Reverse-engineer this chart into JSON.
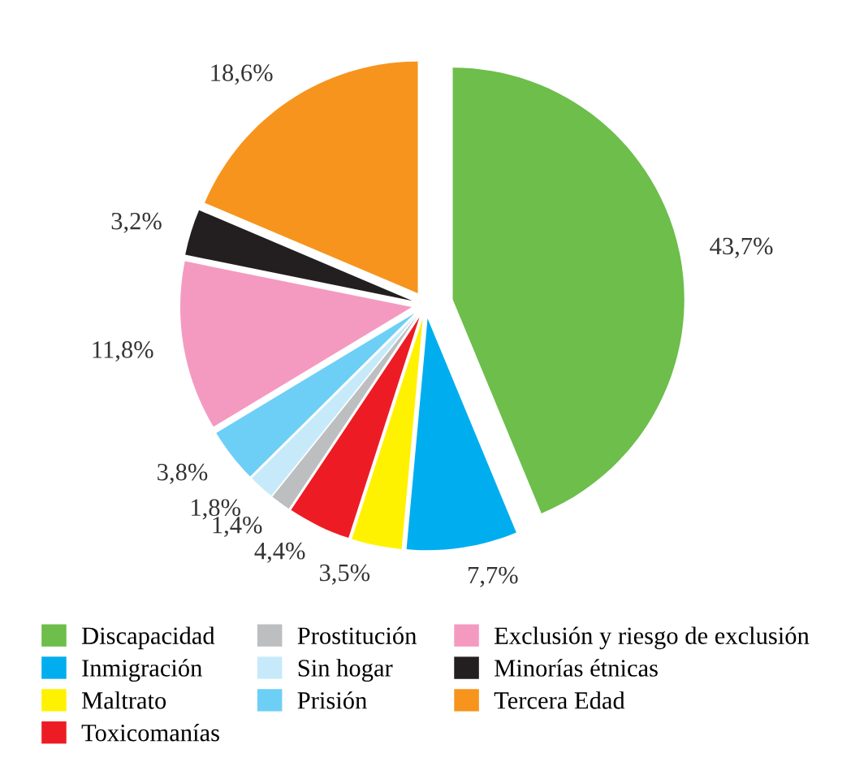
{
  "chart_data": {
    "type": "pie",
    "categories": [
      "Discapacidad",
      "Inmigración",
      "Maltrato",
      "Toxicomanías",
      "Prostitución",
      "Sin hogar",
      "Prisión",
      "Exclusión y riesgo de exclusión",
      "Minorías étnicas",
      "Tercera Edad"
    ],
    "values": [
      43.7,
      7.7,
      3.5,
      4.4,
      1.4,
      1.8,
      3.8,
      11.8,
      3.2,
      18.6
    ],
    "value_labels": [
      "43,7%",
      "7,7%",
      "3,5%",
      "4,4%",
      "1,4%",
      "1,8%",
      "3,8%",
      "11,8%",
      "3,2%",
      "18,6%"
    ],
    "colors": [
      "#6dbe4b",
      "#00aeef",
      "#fff200",
      "#ed1c24",
      "#bcbec0",
      "#c7eafb",
      "#6dcff6",
      "#f49ac1",
      "#231f20",
      "#f7941d"
    ],
    "legend": "bottom"
  }
}
